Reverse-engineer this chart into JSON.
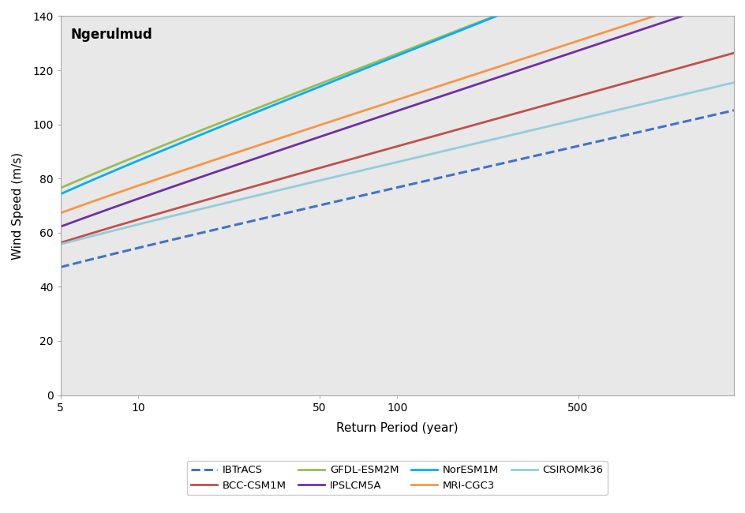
{
  "title": "Ngerulmud",
  "xlabel": "Return Period (year)",
  "ylabel": "Wind Speed (m/s)",
  "ylim": [
    0,
    140
  ],
  "yticks": [
    0,
    20,
    40,
    60,
    80,
    100,
    120,
    140
  ],
  "xlog_ticks": [
    5,
    10,
    50,
    100,
    500
  ],
  "xlim_data": [
    5,
    2000
  ],
  "background_color": "#e8e8e8",
  "series": [
    {
      "name": "IBTrACS",
      "color": "#4472c4",
      "linestyle": "dashed",
      "linewidth": 2.2,
      "mu": 33.0,
      "sigma": 9.5
    },
    {
      "name": "BCC-CSM1M",
      "color": "#c0504d",
      "linestyle": "solid",
      "linewidth": 2.0,
      "mu": 39.0,
      "sigma": 11.5
    },
    {
      "name": "GFDL-ESM2M",
      "color": "#9bbb59",
      "linestyle": "solid",
      "linewidth": 2.0,
      "mu": 52.5,
      "sigma": 16.0
    },
    {
      "name": "IPSLCM5A",
      "color": "#7030a0",
      "linestyle": "solid",
      "linewidth": 2.0,
      "mu": 41.5,
      "sigma": 13.8
    },
    {
      "name": "NorESM1M",
      "color": "#00b0f0",
      "linestyle": "solid",
      "linewidth": 2.0,
      "mu": 49.5,
      "sigma": 16.5
    },
    {
      "name": "MRI-CGC3",
      "color": "#f79646",
      "linestyle": "solid",
      "linewidth": 2.0,
      "mu": 47.0,
      "sigma": 13.5
    },
    {
      "name": "CSIROMk36",
      "color": "#92cddc",
      "linestyle": "solid",
      "linewidth": 2.0,
      "mu": 41.0,
      "sigma": 9.8
    }
  ],
  "legend_ncol": 4,
  "legend_order": [
    "IBTrACS",
    "BCC-CSM1M",
    "GFDL-ESM2M",
    "IPSLCM5A",
    "NorESM1M",
    "MRI-CGC3",
    "CSIROMk36"
  ]
}
